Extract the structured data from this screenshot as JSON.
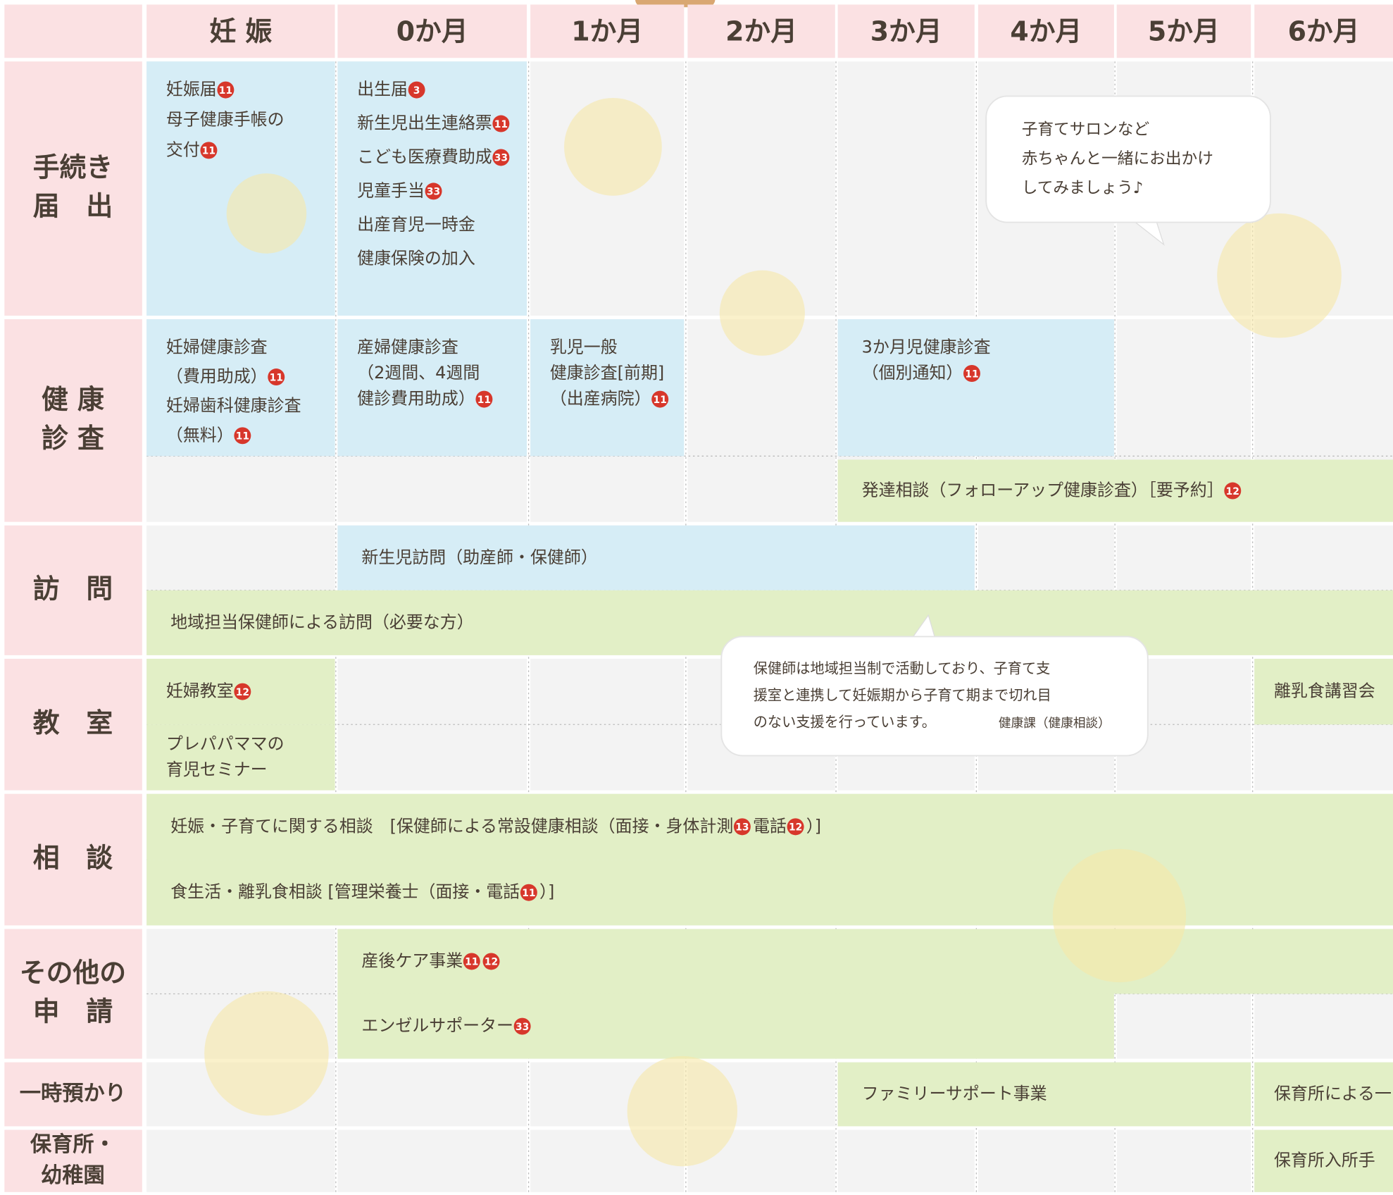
{
  "header": {
    "columns": [
      "妊 娠",
      "0か月",
      "1か月",
      "2か月",
      "3か月",
      "4か月",
      "5か月",
      "6か月"
    ]
  },
  "rows": [
    {
      "lines": [
        "手続き",
        "届　出"
      ]
    },
    {
      "lines": [
        "健 康",
        "診 査"
      ]
    },
    {
      "lines": [
        "訪　問"
      ]
    },
    {
      "lines": [
        "教　室"
      ]
    },
    {
      "lines": [
        "相　談"
      ]
    },
    {
      "lines": [
        "その他の",
        "申　請"
      ]
    },
    {
      "lines": [
        "一時預かり"
      ]
    },
    {
      "lines": [
        "保育所・",
        "幼稚園"
      ]
    }
  ],
  "blocks": [
    {
      "lines": [
        [
          {
            "text": "妊娠届"
          },
          {
            "badge": "11"
          }
        ],
        [
          {
            "text": "母子健康手帳の"
          }
        ],
        [
          {
            "text": "交付"
          },
          {
            "badge": "11"
          }
        ]
      ]
    },
    {
      "lines": [
        [
          {
            "text": "出生届"
          },
          {
            "badge": "3"
          }
        ],
        [
          {
            "text": "新生児出生連絡票"
          },
          {
            "badge": "11"
          }
        ],
        [
          {
            "text": "こども医療費助成"
          },
          {
            "badge": "33"
          }
        ],
        [
          {
            "text": "児童手当"
          },
          {
            "badge": "33"
          }
        ],
        [
          {
            "text": "出産育児一時金"
          }
        ],
        [
          {
            "text": "健康保険の加入"
          }
        ]
      ]
    },
    {
      "lines": [
        [
          {
            "text": "妊婦健康診査"
          }
        ],
        [
          {
            "text": "（費用助成）"
          },
          {
            "badge": "11"
          }
        ],
        [
          {
            "text": "妊婦歯科健康診査"
          }
        ],
        [
          {
            "text": "（無料）"
          },
          {
            "badge": "11"
          }
        ]
      ]
    },
    {
      "lines": [
        [
          {
            "text": "産婦健康診査"
          }
        ],
        [
          {
            "text": "（2週間、4週間"
          }
        ],
        [
          {
            "text": "健診費用助成）"
          },
          {
            "badge": "11"
          }
        ]
      ]
    },
    {
      "lines": [
        [
          {
            "text": "乳児一般"
          }
        ],
        [
          {
            "text": "健康診査[前期]"
          }
        ],
        [
          {
            "text": "（出産病院）"
          },
          {
            "badge": "11"
          }
        ]
      ]
    },
    {
      "lines": [
        [
          {
            "text": "3か月児健康診査"
          }
        ],
        [
          {
            "text": "（個別通知）"
          },
          {
            "badge": "11"
          }
        ]
      ]
    },
    {
      "lines": [
        [
          {
            "text": "発達相談（フォローアップ健康診査）［要予約］"
          },
          {
            "badge": "12"
          }
        ]
      ]
    },
    {
      "lines": [
        [
          {
            "text": "新生児訪問（助産師・保健師）"
          }
        ]
      ]
    },
    {
      "lines": [
        [
          {
            "text": "地域担当保健師による訪問（必要な方）"
          }
        ]
      ]
    },
    {
      "lines": [
        [
          {
            "text": "妊婦教室"
          },
          {
            "badge": "12"
          }
        ]
      ]
    },
    {
      "lines": [
        [
          {
            "text": "プレパパママの"
          }
        ],
        [
          {
            "text": "育児セミナー"
          }
        ]
      ]
    },
    {
      "lines": [
        [
          {
            "text": "離乳食講習会"
          }
        ]
      ]
    },
    {
      "lines": [
        [
          {
            "text": "妊娠・子育てに関する相談　[保健師による常設健康相談（面接・身体計測"
          },
          {
            "badge": "13"
          },
          {
            "text": " 電話"
          },
          {
            "badge": "12"
          },
          {
            "text": "）]"
          }
        ]
      ]
    },
    {
      "lines": [
        [
          {
            "text": "食生活・離乳食相談 [管理栄養士（面接・電話"
          },
          {
            "badge": "11"
          },
          {
            "text": "）]"
          }
        ]
      ]
    },
    {
      "lines": [
        [
          {
            "text": "産後ケア事業 "
          },
          {
            "badge": "11"
          },
          {
            "badge": "12"
          }
        ]
      ]
    },
    {
      "lines": [
        [
          {
            "text": "エンゼルサポーター "
          },
          {
            "badge": "33"
          }
        ]
      ]
    },
    {
      "lines": [
        [
          {
            "text": "ファミリーサポート事業"
          }
        ]
      ]
    },
    {
      "lines": [
        [
          {
            "text": "保育所による一"
          }
        ]
      ]
    },
    {
      "lines": [
        [
          {
            "text": "保育所入所手"
          }
        ]
      ]
    }
  ],
  "bubbles": [
    {
      "lines": [
        "子育てサロンなど",
        "赤ちゃんと一緒にお出かけ",
        "してみましょう♪"
      ]
    },
    {
      "lines": [
        "保健師は地域担当制で活動しており、子育て支",
        "援室と連携して妊娠期から子育て期まで切れ目",
        "のない支援を行っています。",
        "健康課（健康相談）"
      ]
    }
  ]
}
